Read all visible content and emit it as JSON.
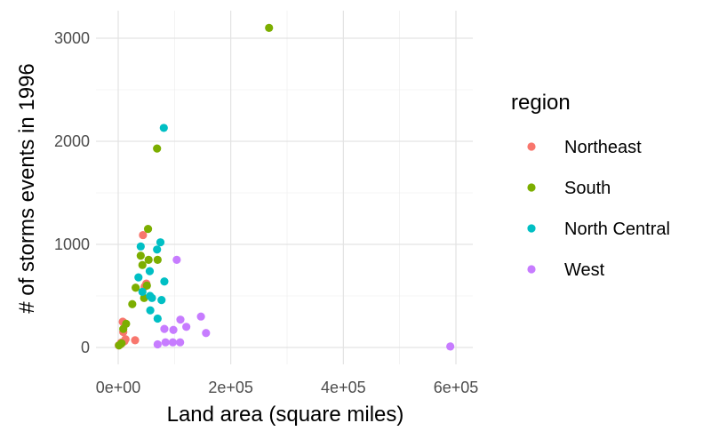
{
  "chart_data": {
    "type": "scatter",
    "title": "",
    "xlabel": "Land area (square miles)",
    "ylabel": "# of storms events in 1996",
    "xlim": [
      0,
      600000
    ],
    "ylim": [
      0,
      3100
    ],
    "x_ticks": [
      0,
      200000,
      400000,
      600000
    ],
    "x_tick_labels": [
      "0e+00",
      "2e+05",
      "4e+05",
      "6e+05"
    ],
    "y_ticks": [
      0,
      1000,
      2000,
      3000
    ],
    "y_tick_labels": [
      "0",
      "1000",
      "2000",
      "3000"
    ],
    "grid": true,
    "legend_title": "region",
    "legend_position": "right",
    "series": [
      {
        "name": "Northeast",
        "color": "#F8766D",
        "points": [
          [
            1000,
            20
          ],
          [
            4000,
            30
          ],
          [
            5000,
            45
          ],
          [
            7000,
            50
          ],
          [
            8000,
            250
          ],
          [
            9000,
            150
          ],
          [
            10000,
            240
          ],
          [
            11000,
            60
          ],
          [
            13000,
            80
          ],
          [
            30000,
            70
          ],
          [
            44000,
            1090
          ],
          [
            47000,
            590
          ],
          [
            50000,
            620
          ]
        ]
      },
      {
        "name": "South",
        "color": "#7CAE00",
        "points": [
          [
            1500,
            20
          ],
          [
            6000,
            40
          ],
          [
            9000,
            180
          ],
          [
            14000,
            230
          ],
          [
            25000,
            420
          ],
          [
            31000,
            580
          ],
          [
            40000,
            890
          ],
          [
            43000,
            800
          ],
          [
            46000,
            480
          ],
          [
            51000,
            600
          ],
          [
            53000,
            1150
          ],
          [
            54000,
            850
          ],
          [
            69000,
            1930
          ],
          [
            70000,
            850
          ],
          [
            268000,
            3100
          ]
        ]
      },
      {
        "name": "North Central",
        "color": "#00BFC4",
        "points": [
          [
            36000,
            680
          ],
          [
            40000,
            980
          ],
          [
            43000,
            540
          ],
          [
            56000,
            740
          ],
          [
            56500,
            500
          ],
          [
            57000,
            360
          ],
          [
            60000,
            480
          ],
          [
            69000,
            950
          ],
          [
            70000,
            280
          ],
          [
            75000,
            1020
          ],
          [
            77000,
            460
          ],
          [
            81000,
            2130
          ],
          [
            82000,
            640
          ]
        ]
      },
      {
        "name": "West",
        "color": "#C77CFF",
        "points": [
          [
            70000,
            30
          ],
          [
            82000,
            180
          ],
          [
            84000,
            50
          ],
          [
            97000,
            50
          ],
          [
            98000,
            170
          ],
          [
            104000,
            850
          ],
          [
            110000,
            50
          ],
          [
            110500,
            270
          ],
          [
            121000,
            200
          ],
          [
            147000,
            300
          ],
          [
            156000,
            140
          ],
          [
            590000,
            10
          ]
        ]
      }
    ]
  }
}
